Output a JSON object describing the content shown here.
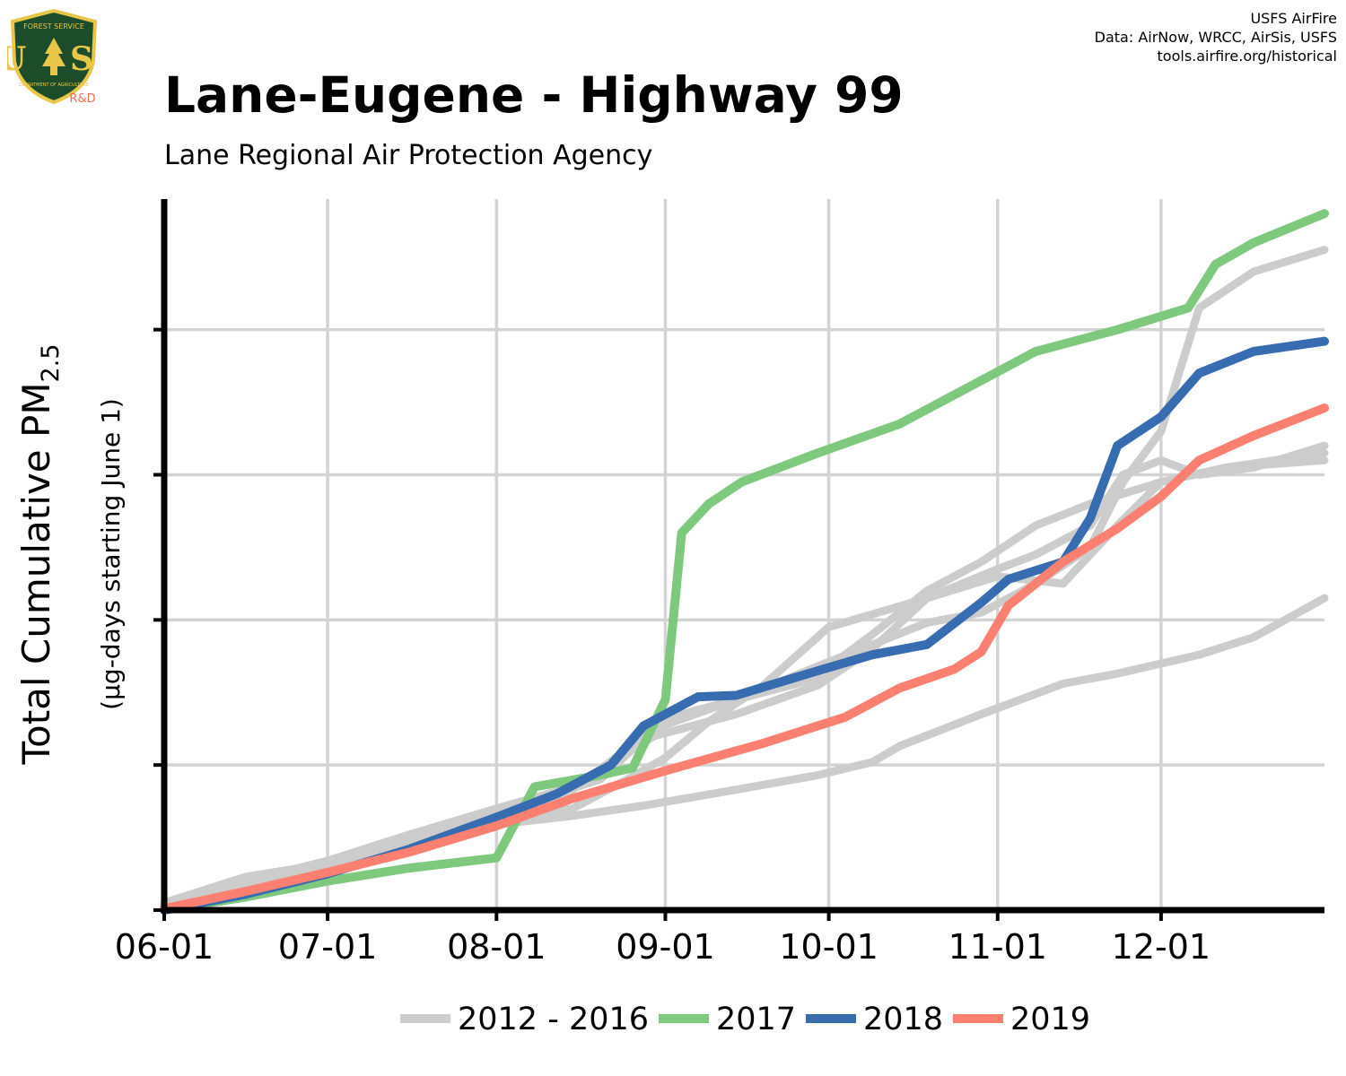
{
  "title": "Lane-Eugene - Highway 99",
  "subtitle": "Lane Regional Air Protection Agency",
  "credits": [
    "USFS AirFire",
    "Data: AirNow, WRCC, AirSis, USFS",
    "tools.airfire.org/historical"
  ],
  "logo": {
    "top_text": "FOREST SERVICE",
    "letters": "U S",
    "bottom_text": "DEPARTMENT OF AGRICULTURE",
    "tag": "R&D"
  },
  "colors": {
    "background_years": "#cccccc",
    "y2017": "#7fc97f",
    "y2018": "#386cb0",
    "y2019": "#fb8072",
    "grid": "#d3d3d3",
    "axis": "#000000"
  },
  "chart_data": {
    "type": "line",
    "ylabel_main": "Total Cumulative PM",
    "ylabel_sub": "2.5",
    "ylabel_note": "(µg-days starting June 1)",
    "x_ticks": [
      "06-01",
      "07-01",
      "08-01",
      "09-01",
      "10-01",
      "11-01",
      "12-01"
    ],
    "x_tick_days": [
      0,
      30,
      61,
      92,
      122,
      153,
      183
    ],
    "xlim": [
      0,
      213
    ],
    "ylim": [
      0,
      4900
    ],
    "y_gridlines": [
      1000,
      2000,
      3000,
      4000
    ],
    "y_tick_labels_shown": false,
    "legend": {
      "placement": "bottom",
      "entries": [
        {
          "label": "2012 - 2016",
          "color": "#cccccc"
        },
        {
          "label": "2017",
          "color": "#7fc97f"
        },
        {
          "label": "2018",
          "color": "#386cb0"
        },
        {
          "label": "2019",
          "color": "#fb8072"
        }
      ]
    },
    "series": [
      {
        "group": "2012 - 2016",
        "color": "#cccccc",
        "points": [
          [
            0,
            20
          ],
          [
            15,
            130
          ],
          [
            30,
            270
          ],
          [
            45,
            440
          ],
          [
            61,
            590
          ],
          [
            75,
            650
          ],
          [
            88,
            720
          ],
          [
            105,
            830
          ],
          [
            120,
            930
          ],
          [
            130,
            1020
          ],
          [
            135,
            1130
          ],
          [
            150,
            1350
          ],
          [
            165,
            1560
          ],
          [
            175,
            1630
          ],
          [
            190,
            1760
          ],
          [
            200,
            1880
          ],
          [
            213,
            2150
          ]
        ]
      },
      {
        "group": "2012 - 2016",
        "color": "#cccccc",
        "points": [
          [
            0,
            50
          ],
          [
            15,
            230
          ],
          [
            30,
            320
          ],
          [
            45,
            500
          ],
          [
            61,
            700
          ],
          [
            75,
            850
          ],
          [
            90,
            1200
          ],
          [
            105,
            1350
          ],
          [
            120,
            1550
          ],
          [
            130,
            1800
          ],
          [
            140,
            2150
          ],
          [
            153,
            2350
          ],
          [
            160,
            2450
          ],
          [
            170,
            2650
          ],
          [
            176,
            3000
          ],
          [
            183,
            3100
          ],
          [
            190,
            3000
          ],
          [
            200,
            3050
          ],
          [
            213,
            3200
          ]
        ]
      },
      {
        "group": "2012 - 2016",
        "color": "#cccccc",
        "points": [
          [
            0,
            30
          ],
          [
            15,
            200
          ],
          [
            30,
            310
          ],
          [
            45,
            470
          ],
          [
            61,
            640
          ],
          [
            75,
            830
          ],
          [
            90,
            1250
          ],
          [
            105,
            1450
          ],
          [
            120,
            1600
          ],
          [
            125,
            1760
          ],
          [
            130,
            1900
          ],
          [
            140,
            2200
          ],
          [
            150,
            2400
          ],
          [
            160,
            2650
          ],
          [
            170,
            2800
          ],
          [
            183,
            2950
          ],
          [
            195,
            3050
          ],
          [
            213,
            3100
          ]
        ]
      },
      {
        "group": "2012 - 2016",
        "color": "#cccccc",
        "points": [
          [
            0,
            40
          ],
          [
            15,
            200
          ],
          [
            30,
            340
          ],
          [
            45,
            520
          ],
          [
            61,
            700
          ],
          [
            70,
            780
          ],
          [
            80,
            900
          ],
          [
            92,
            1320
          ],
          [
            105,
            1450
          ],
          [
            120,
            1680
          ],
          [
            128,
            1800
          ],
          [
            140,
            1980
          ],
          [
            150,
            2050
          ],
          [
            160,
            2250
          ],
          [
            170,
            2500
          ],
          [
            176,
            2950
          ],
          [
            183,
            3300
          ],
          [
            190,
            4150
          ],
          [
            200,
            4400
          ],
          [
            213,
            4550
          ]
        ]
      },
      {
        "group": "2012 - 2016",
        "color": "#cccccc",
        "points": [
          [
            0,
            30
          ],
          [
            15,
            160
          ],
          [
            30,
            300
          ],
          [
            45,
            500
          ],
          [
            61,
            630
          ],
          [
            75,
            700
          ],
          [
            85,
            900
          ],
          [
            92,
            1050
          ],
          [
            100,
            1300
          ],
          [
            110,
            1550
          ],
          [
            122,
            1950
          ],
          [
            140,
            2150
          ],
          [
            153,
            2300
          ],
          [
            165,
            2250
          ],
          [
            175,
            2650
          ],
          [
            183,
            2950
          ],
          [
            195,
            3050
          ],
          [
            213,
            3150
          ]
        ]
      },
      {
        "group": "2017",
        "color": "#7fc97f",
        "points": [
          [
            0,
            0
          ],
          [
            15,
            90
          ],
          [
            30,
            200
          ],
          [
            45,
            290
          ],
          [
            61,
            360
          ],
          [
            68,
            850
          ],
          [
            80,
            930
          ],
          [
            86,
            980
          ],
          [
            92,
            1450
          ],
          [
            95,
            2600
          ],
          [
            100,
            2800
          ],
          [
            106,
            2950
          ],
          [
            120,
            3150
          ],
          [
            135,
            3350
          ],
          [
            150,
            3650
          ],
          [
            160,
            3850
          ],
          [
            175,
            4000
          ],
          [
            188,
            4150
          ],
          [
            193,
            4450
          ],
          [
            200,
            4600
          ],
          [
            213,
            4800
          ]
        ]
      },
      {
        "group": "2018",
        "color": "#386cb0",
        "points": [
          [
            0,
            0
          ],
          [
            15,
            110
          ],
          [
            30,
            250
          ],
          [
            45,
            420
          ],
          [
            61,
            640
          ],
          [
            72,
            800
          ],
          [
            82,
            1000
          ],
          [
            88,
            1270
          ],
          [
            98,
            1470
          ],
          [
            105,
            1480
          ],
          [
            120,
            1650
          ],
          [
            130,
            1760
          ],
          [
            140,
            1830
          ],
          [
            150,
            2120
          ],
          [
            155,
            2280
          ],
          [
            165,
            2400
          ],
          [
            170,
            2700
          ],
          [
            175,
            3200
          ],
          [
            183,
            3400
          ],
          [
            190,
            3700
          ],
          [
            200,
            3850
          ],
          [
            213,
            3920
          ]
        ]
      },
      {
        "group": "2019",
        "color": "#fb8072",
        "points": [
          [
            0,
            10
          ],
          [
            15,
            130
          ],
          [
            30,
            260
          ],
          [
            45,
            400
          ],
          [
            61,
            580
          ],
          [
            75,
            770
          ],
          [
            92,
            960
          ],
          [
            110,
            1150
          ],
          [
            125,
            1330
          ],
          [
            135,
            1530
          ],
          [
            145,
            1660
          ],
          [
            150,
            1780
          ],
          [
            155,
            2100
          ],
          [
            165,
            2400
          ],
          [
            175,
            2630
          ],
          [
            183,
            2850
          ],
          [
            190,
            3100
          ],
          [
            200,
            3270
          ],
          [
            213,
            3460
          ]
        ]
      }
    ]
  }
}
